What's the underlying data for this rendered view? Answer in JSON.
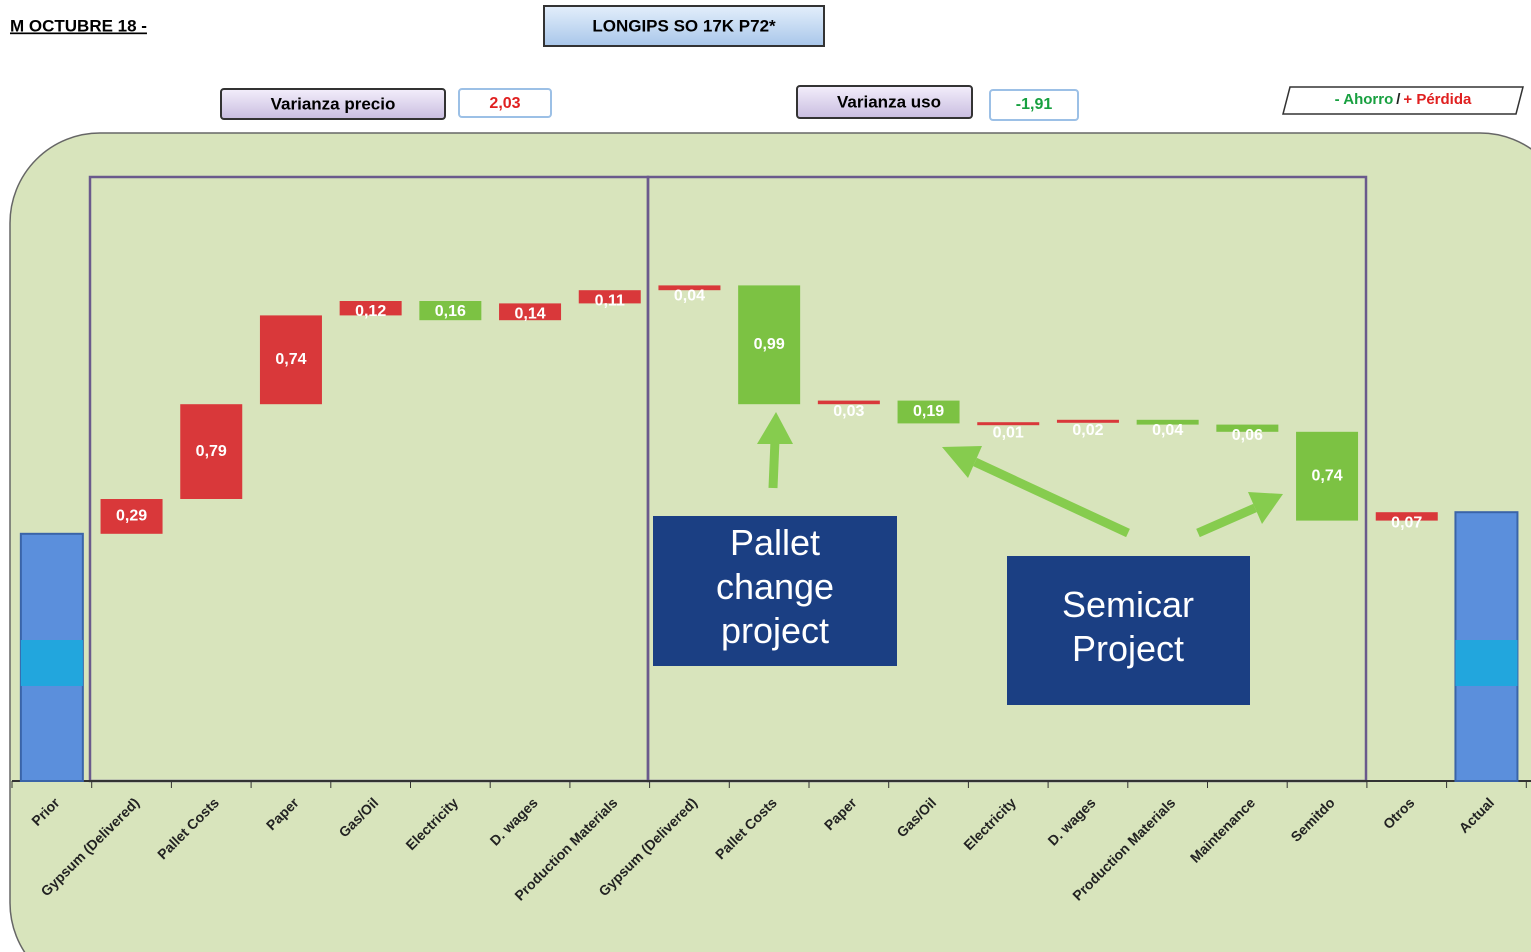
{
  "chart_data": {
    "type": "waterfall",
    "title": "LONGIPS SO 17K P72*",
    "subtitle": "M OCTUBRE 18 -",
    "price_variance": {
      "label": "Varianza precio",
      "value": "2,03"
    },
    "usage_variance": {
      "label": "Varianza uso",
      "value": "-1,91"
    },
    "legend": [
      "- Ahorro",
      "/",
      "+ Pérdida"
    ],
    "annotations": [
      "Pallet change project",
      "Semicar Project"
    ],
    "categories": [
      "Prior",
      "Gypsum (Delivered)",
      "Pallet Costs",
      "Paper",
      "Gas/Oil",
      "Electricity",
      "D. wages",
      "Production Materials",
      "Gypsum (Delivered)",
      "Pallet Costs",
      "Paper",
      "Gas/Oil",
      "Electricity",
      "D. wages",
      "Production Materials",
      "Maintenance",
      "Semitdo",
      "Otros",
      "Actual"
    ],
    "measure": [
      "total",
      "relative",
      "relative",
      "relative",
      "relative",
      "relative",
      "relative",
      "relative",
      "relative",
      "relative",
      "relative",
      "relative",
      "relative",
      "relative",
      "relative",
      "relative",
      "relative",
      "relative",
      "total"
    ],
    "values": [
      2.06,
      0.29,
      0.79,
      0.74,
      0.12,
      -0.16,
      0.14,
      0.11,
      0.04,
      -0.99,
      0.03,
      -0.19,
      0.01,
      0.02,
      -0.04,
      -0.06,
      -0.74,
      0.07,
      2.24
    ],
    "value_labels": [
      null,
      "0,29",
      "0,79",
      "0,74",
      "0,12",
      "0,16",
      "0,14",
      "0,11",
      "0,04",
      "0,99",
      "0,03",
      "0,19",
      "0,01",
      "0,02",
      "0,04",
      "0,06",
      "0,74",
      "0,07",
      null
    ],
    "colors": {
      "loss": "#d9383a",
      "saving": "#7cc243",
      "total": "#5b8fdc"
    }
  }
}
